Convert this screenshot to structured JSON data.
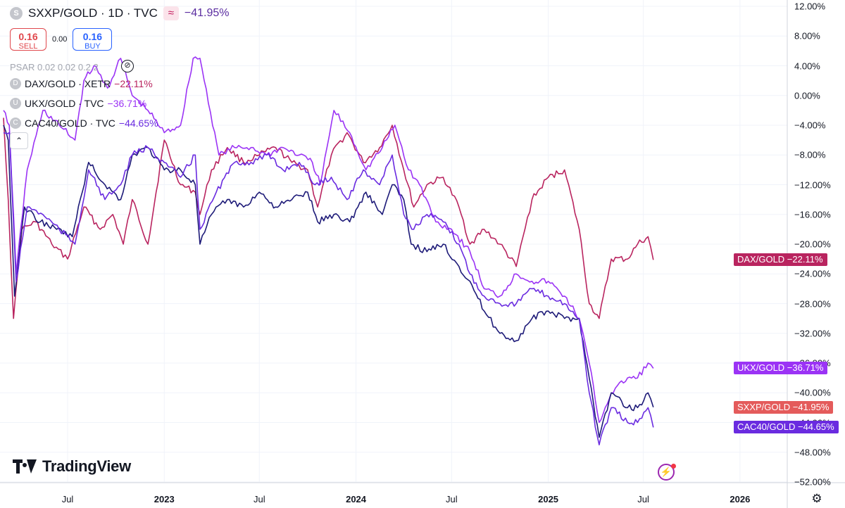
{
  "header": {
    "symbol_initial": "S",
    "symbol_title": "SXXP/GOLD · 1D · TVC",
    "change": "−41.95%",
    "compare_icon": "compare-icon"
  },
  "trade": {
    "sell_price": "0.16",
    "sell_label": "SELL",
    "spread": "0.00",
    "buy_price": "0.16",
    "buy_label": "BUY"
  },
  "indicator": {
    "psar": "PSAR 0.02 0.02 0.2 2"
  },
  "legend": [
    {
      "initial": "D",
      "label": "DAX/GOLD · XETR",
      "change": "−22.11%",
      "color": "#b9245f"
    },
    {
      "initial": "U",
      "label": "UKX/GOLD · TVC",
      "change": "−36.71%",
      "color": "#9b33f5"
    },
    {
      "initial": "C",
      "label": "CAC40/GOLD · TVC",
      "change": "−44.65%",
      "color": "#6a2be0"
    }
  ],
  "branding": {
    "logo_text": "TradingView"
  },
  "chart_data": {
    "type": "line",
    "x_ticks": [
      "Jul",
      "2023",
      "Jul",
      "2024",
      "Jul",
      "2025",
      "Jul",
      "2026"
    ],
    "y_ticks": [
      "12.00%",
      "8.00%",
      "4.00%",
      "0.00%",
      "−4.00%",
      "−8.00%",
      "−12.00%",
      "−16.00%",
      "−20.00%",
      "−24.00%",
      "−28.00%",
      "−32.00%",
      "−36.00%",
      "−40.00%",
      "−44.00%",
      "−48.00%",
      "−52.00%"
    ],
    "ylim": [
      -52,
      12
    ],
    "x_domain": [
      "2022-03-01",
      "2026-04-01"
    ],
    "grid": true,
    "series": [
      {
        "name": "DAX/GOLD",
        "color": "#b9245f",
        "last_label": "−22.11%",
        "x": [
          "2022-03-01",
          "2022-03-10",
          "2022-03-20",
          "2022-04-05",
          "2022-05-01",
          "2022-06-01",
          "2022-07-01",
          "2022-08-01",
          "2022-09-01",
          "2022-09-25",
          "2022-10-15",
          "2022-11-01",
          "2022-12-01",
          "2023-01-01",
          "2023-02-01",
          "2023-03-01",
          "2023-03-10",
          "2023-04-01",
          "2023-05-01",
          "2023-06-01",
          "2023-07-01",
          "2023-08-01",
          "2023-09-01",
          "2023-10-01",
          "2023-10-20",
          "2023-11-15",
          "2023-12-15",
          "2024-01-15",
          "2024-02-15",
          "2024-03-10",
          "2024-04-01",
          "2024-04-20",
          "2024-05-15",
          "2024-06-15",
          "2024-07-15",
          "2024-08-05",
          "2024-09-01",
          "2024-10-01",
          "2024-11-01",
          "2024-12-01",
          "2025-01-01",
          "2025-02-01",
          "2025-03-01",
          "2025-03-20",
          "2025-04-08",
          "2025-05-01",
          "2025-06-01",
          "2025-06-20",
          "2025-07-10",
          "2025-07-20"
        ],
        "values": [
          -3,
          -14,
          -30,
          -18,
          -17,
          -20,
          -22,
          -15,
          -18,
          -16,
          -20,
          -14,
          -20,
          -6,
          -12,
          -13,
          -16,
          -10,
          -7,
          -9,
          -8,
          -7,
          -9,
          -10,
          -15,
          -8,
          -5,
          -9,
          -7,
          -4,
          -10,
          -15,
          -12,
          -11,
          -15,
          -20,
          -18,
          -20,
          -23,
          -14,
          -11,
          -10,
          -18,
          -28,
          -30,
          -22,
          -22,
          -20,
          -19,
          -22.11
        ]
      },
      {
        "name": "UKX/GOLD",
        "color": "#9b33f5",
        "last_label": "−36.71%",
        "x": [
          "2022-03-01",
          "2022-03-12",
          "2022-03-25",
          "2022-04-15",
          "2022-05-15",
          "2022-06-15",
          "2022-07-15",
          "2022-08-01",
          "2022-08-20",
          "2022-09-15",
          "2022-10-10",
          "2022-11-01",
          "2022-12-01",
          "2023-01-01",
          "2023-02-01",
          "2023-02-25",
          "2023-03-10",
          "2023-04-15",
          "2023-05-15",
          "2023-06-15",
          "2023-07-15",
          "2023-08-15",
          "2023-09-15",
          "2023-10-10",
          "2023-10-25",
          "2023-11-20",
          "2023-12-20",
          "2024-01-20",
          "2024-02-20",
          "2024-03-15",
          "2024-04-10",
          "2024-05-01",
          "2024-06-01",
          "2024-07-01",
          "2024-08-05",
          "2024-09-01",
          "2024-10-01",
          "2024-11-01",
          "2024-12-01",
          "2025-01-01",
          "2025-02-01",
          "2025-03-01",
          "2025-03-20",
          "2025-04-08",
          "2025-05-01",
          "2025-06-01",
          "2025-06-20",
          "2025-07-10",
          "2025-07-20"
        ],
        "values": [
          -2,
          -4,
          -24,
          -10,
          -2,
          -4,
          -6,
          2,
          4,
          1,
          5,
          0,
          -2,
          -5,
          -4,
          5,
          5,
          -8,
          -7,
          -7,
          -8,
          -7,
          -8,
          -9,
          -12,
          -2,
          -5,
          -10,
          -7,
          -4,
          -10,
          -12,
          -17,
          -18,
          -21,
          -26,
          -27,
          -24,
          -25,
          -25,
          -27,
          -30,
          -36,
          -44,
          -40,
          -38,
          -38,
          -36,
          -36.71
        ]
      },
      {
        "name": "SXXP/GOLD",
        "color": "#1d1a78",
        "last_label": "−41.95%",
        "x": [
          "2022-03-01",
          "2022-03-10",
          "2022-03-22",
          "2022-04-10",
          "2022-05-10",
          "2022-06-10",
          "2022-07-10",
          "2022-08-10",
          "2022-09-10",
          "2022-10-10",
          "2022-11-01",
          "2022-12-01",
          "2023-01-01",
          "2023-02-01",
          "2023-03-01",
          "2023-03-10",
          "2023-04-01",
          "2023-05-01",
          "2023-06-01",
          "2023-07-01",
          "2023-08-01",
          "2023-09-01",
          "2023-10-01",
          "2023-10-20",
          "2023-11-20",
          "2023-12-20",
          "2024-01-20",
          "2024-02-20",
          "2024-03-10",
          "2024-04-01",
          "2024-04-15",
          "2024-05-15",
          "2024-06-15",
          "2024-07-15",
          "2024-08-05",
          "2024-09-01",
          "2024-10-01",
          "2024-11-01",
          "2024-12-01",
          "2025-01-01",
          "2025-02-01",
          "2025-03-01",
          "2025-03-20",
          "2025-04-08",
          "2025-05-01",
          "2025-06-01",
          "2025-06-20",
          "2025-07-10",
          "2025-07-20"
        ],
        "values": [
          -4,
          -6,
          -27,
          -15,
          -17,
          -18,
          -19,
          -9,
          -12,
          -14,
          -8,
          -7,
          -10,
          -10,
          -12,
          -20,
          -16,
          -14,
          -15,
          -13,
          -15,
          -14,
          -13,
          -17,
          -16,
          -17,
          -13,
          -16,
          -12,
          -14,
          -20,
          -21,
          -20,
          -23,
          -25,
          -29,
          -32,
          -33,
          -30,
          -29,
          -30,
          -30,
          -38,
          -46,
          -40,
          -42,
          -42,
          -40,
          -41.95
        ]
      },
      {
        "name": "CAC40/GOLD",
        "color": "#6a2be0",
        "last_label": "−44.65%",
        "x": [
          "2022-03-01",
          "2022-03-12",
          "2022-03-25",
          "2022-04-15",
          "2022-05-15",
          "2022-06-15",
          "2022-07-15",
          "2022-08-10",
          "2022-09-10",
          "2022-10-10",
          "2022-11-01",
          "2022-12-01",
          "2023-01-01",
          "2023-02-01",
          "2023-03-01",
          "2023-03-10",
          "2023-04-10",
          "2023-05-15",
          "2023-06-15",
          "2023-07-15",
          "2023-08-15",
          "2023-09-15",
          "2023-10-15",
          "2023-11-15",
          "2023-12-15",
          "2024-01-15",
          "2024-02-15",
          "2024-03-10",
          "2024-04-01",
          "2024-04-20",
          "2024-05-15",
          "2024-06-15",
          "2024-07-15",
          "2024-08-05",
          "2024-09-01",
          "2024-10-01",
          "2024-11-01",
          "2024-12-01",
          "2025-01-01",
          "2025-02-01",
          "2025-03-01",
          "2025-03-20",
          "2025-04-08",
          "2025-05-01",
          "2025-06-01",
          "2025-06-20",
          "2025-07-10",
          "2025-07-20"
        ],
        "values": [
          -5,
          -5,
          -25,
          -15,
          -16,
          -18,
          -20,
          -10,
          -14,
          -12,
          -8,
          -7,
          -9,
          -11,
          -8,
          -18,
          -13,
          -9,
          -9,
          -8,
          -10,
          -9,
          -12,
          -11,
          -14,
          -10,
          -12,
          -8,
          -16,
          -18,
          -16,
          -17,
          -20,
          -24,
          -27,
          -28,
          -28,
          -26,
          -27,
          -28,
          -30,
          -40,
          -47,
          -42,
          -44,
          -44,
          -42,
          -44.65
        ]
      }
    ]
  }
}
